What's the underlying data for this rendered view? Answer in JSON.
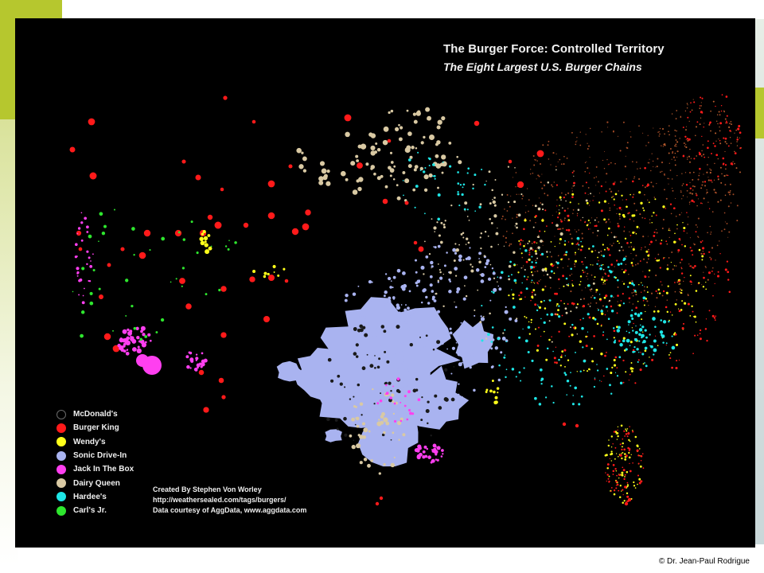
{
  "slide": {
    "accent_color": "#b6c72e",
    "copyright": "© Dr. Jean-Paul Rodrigue"
  },
  "map": {
    "title": "The Burger Force:  Controlled Territory",
    "subtitle": "The Eight Largest U.S. Burger Chains",
    "background_color": "#000000",
    "legend": [
      {
        "label": "McDonald's",
        "color": "#000000",
        "outline": "#6a6a6a"
      },
      {
        "label": "Burger King",
        "color": "#ff1a1a"
      },
      {
        "label": "Wendy's",
        "color": "#ffff1a"
      },
      {
        "label": "Sonic Drive-In",
        "color": "#a9b3f0"
      },
      {
        "label": "Jack In The Box",
        "color": "#ff3ff0"
      },
      {
        "label": "Dairy Queen",
        "color": "#d9c9a3"
      },
      {
        "label": "Hardee's",
        "color": "#1ee6e6"
      },
      {
        "label": "Carl's Jr.",
        "color": "#2ee62e"
      }
    ],
    "credits": [
      "Created By Stephen Von Worley",
      "http://weathersealed.com/tags/burgers/",
      "Data courtesy of AggData, www.aggdata.com"
    ]
  }
}
